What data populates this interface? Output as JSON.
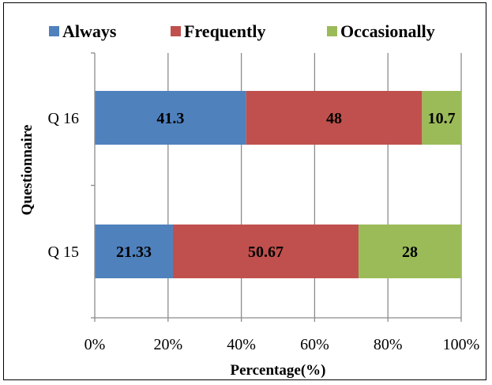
{
  "chart_data": {
    "type": "bar",
    "orientation": "horizontal",
    "stacked": true,
    "categories": [
      "Q 15",
      "Q 16"
    ],
    "series": [
      {
        "name": "Always",
        "values": [
          21.33,
          41.3
        ],
        "labels": [
          "21.33",
          "41.3"
        ],
        "color": "#4f81bd"
      },
      {
        "name": "Frequently",
        "values": [
          50.67,
          48
        ],
        "labels": [
          "50.67",
          "48"
        ],
        "color": "#c0504d"
      },
      {
        "name": "Occasionally",
        "values": [
          28,
          10.7
        ],
        "labels": [
          "28",
          "10.7"
        ],
        "color": "#9bbb59"
      }
    ],
    "xlabel": "Percentage(%)",
    "ylabel": "Questionnaire",
    "xlim": [
      0,
      100
    ],
    "xticks": [
      0,
      20,
      40,
      60,
      80,
      100
    ],
    "xtick_labels": [
      "0%",
      "20%",
      "40%",
      "60%",
      "80%",
      "100%"
    ],
    "grid": "vertical",
    "legend_position": "top"
  }
}
